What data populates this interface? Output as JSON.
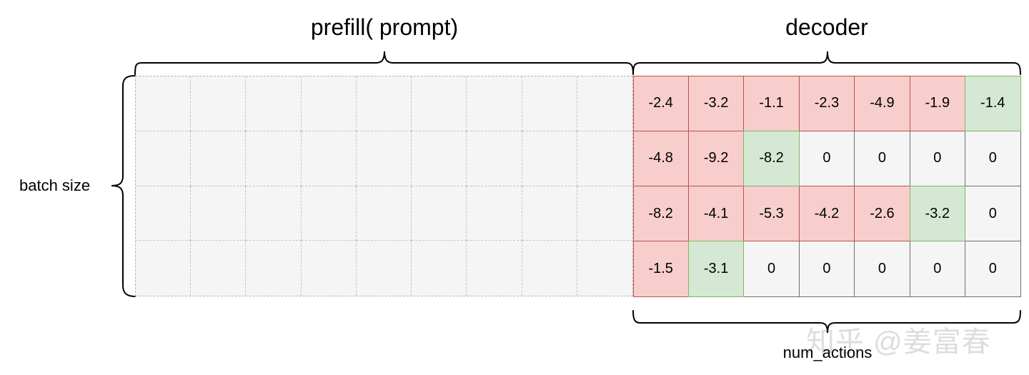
{
  "titles": {
    "prefill": "prefill( prompt)",
    "decoder": "decoder"
  },
  "labels": {
    "batch_size": "batch size",
    "num_actions": "num_actions"
  },
  "watermark": "知乎 @姜富春",
  "colors": {
    "negative_fill": "#f8cecc",
    "negative_border": "#b85450",
    "last_fill": "#d5e8d4",
    "last_border": "#82b366",
    "empty_fill": "#f5f5f5",
    "prefill_fill": "#f5f5f5"
  },
  "grid": {
    "prefill_columns": 9,
    "rows": 4
  },
  "decoder": {
    "rows": [
      [
        {
          "value": "-2.4",
          "state": "red"
        },
        {
          "value": "-3.2",
          "state": "red"
        },
        {
          "value": "-1.1",
          "state": "red"
        },
        {
          "value": "-2.3",
          "state": "red"
        },
        {
          "value": "-4.9",
          "state": "red"
        },
        {
          "value": "-1.9",
          "state": "red"
        },
        {
          "value": "-1.4",
          "state": "green"
        }
      ],
      [
        {
          "value": "-4.8",
          "state": "red"
        },
        {
          "value": "-9.2",
          "state": "red"
        },
        {
          "value": "-8.2",
          "state": "green"
        },
        {
          "value": "0",
          "state": "empty"
        },
        {
          "value": "0",
          "state": "empty"
        },
        {
          "value": "0",
          "state": "empty"
        },
        {
          "value": "0",
          "state": "empty"
        }
      ],
      [
        {
          "value": "-8.2",
          "state": "red"
        },
        {
          "value": "-4.1",
          "state": "red"
        },
        {
          "value": "-5.3",
          "state": "red"
        },
        {
          "value": "-4.2",
          "state": "red"
        },
        {
          "value": "-2.6",
          "state": "red"
        },
        {
          "value": "-3.2",
          "state": "green"
        },
        {
          "value": "0",
          "state": "empty"
        }
      ],
      [
        {
          "value": "-1.5",
          "state": "red"
        },
        {
          "value": "-3.1",
          "state": "green"
        },
        {
          "value": "0",
          "state": "empty"
        },
        {
          "value": "0",
          "state": "empty"
        },
        {
          "value": "0",
          "state": "empty"
        },
        {
          "value": "0",
          "state": "empty"
        },
        {
          "value": "0",
          "state": "empty"
        }
      ]
    ]
  }
}
